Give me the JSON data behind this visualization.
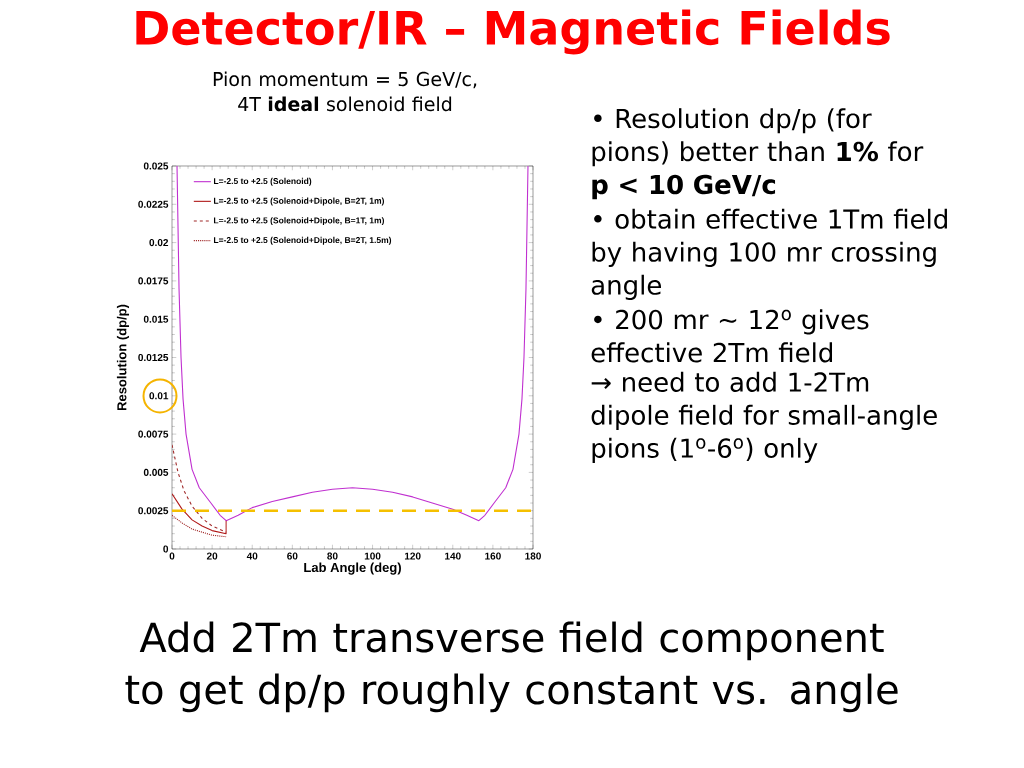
{
  "chart_data": {
    "type": "line",
    "title": "Detector/IR – Magnetic Fields",
    "subtitle": "Pion  momentum = 5 GeV/c, 4T **ideal** solenoid field",
    "xlabel": "Lab Angle (deg)",
    "ylabel": "Resolution (dp/p)",
    "xlim": [
      0,
      180
    ],
    "ylim": [
      0,
      0.025
    ],
    "xticks": [
      0,
      20,
      40,
      60,
      80,
      100,
      120,
      140,
      160,
      180
    ],
    "yticks": [
      0,
      0.0025,
      0.005,
      0.0075,
      0.01,
      0.0125,
      0.015,
      0.0175,
      0.02,
      0.0225,
      0.025
    ],
    "legend": "top left",
    "grid": false,
    "marker": "none",
    "series": [
      {
        "name": "L=-2.5 to +2.5 (Solenoid)",
        "color": "#c030d0",
        "line_style": "solid",
        "x": [
          2.5,
          3.5,
          4.5,
          5.5,
          7,
          10,
          13.6,
          19.4,
          24,
          27,
          33,
          40,
          50,
          60,
          70,
          80,
          90,
          100,
          110,
          120,
          130,
          140,
          147,
          153,
          156,
          160.6,
          166.4,
          170,
          173,
          174.5,
          175.5,
          176.5,
          177.5
        ],
        "values": [
          0.025,
          0.017,
          0.0125,
          0.0098,
          0.0075,
          0.0052,
          0.004,
          0.003,
          0.0022,
          0.00185,
          0.0022,
          0.0027,
          0.0031,
          0.0034,
          0.0037,
          0.0039,
          0.004,
          0.0039,
          0.0037,
          0.0034,
          0.003,
          0.0026,
          0.0022,
          0.00185,
          0.0022,
          0.003,
          0.004,
          0.0052,
          0.0075,
          0.0098,
          0.0125,
          0.017,
          0.025
        ]
      },
      {
        "name": "L=-2.5 to +2.5 (Solenoid+Dipole, B=2T, 1m)",
        "color": "#b01818",
        "line_style": "solid",
        "x": [
          0,
          5,
          10,
          15,
          20,
          27,
          27
        ],
        "values": [
          0.0036,
          0.0026,
          0.0019,
          0.0015,
          0.0012,
          0.001,
          0.00185
        ]
      },
      {
        "name": "L=-2.5 to +2.5 (Solenoid+Dipole, B=1T, 1m)",
        "color": "#a02828",
        "line_style": "dashed",
        "x": [
          0,
          3,
          6,
          10,
          15,
          20,
          27
        ],
        "values": [
          0.0068,
          0.005,
          0.0038,
          0.0028,
          0.002,
          0.0015,
          0.0011
        ]
      },
      {
        "name": "L=-2.5 to +2.5 (Solenoid+Dipole, B=2T, 1.5m)",
        "color": "#a02828",
        "line_style": "dotted",
        "x": [
          0,
          5,
          10,
          15,
          20,
          27
        ],
        "values": [
          0.0022,
          0.0017,
          0.0013,
          0.0011,
          0.0009,
          0.0008
        ]
      }
    ],
    "ref_lines": [
      {
        "axis": "y",
        "value": 0.0025,
        "color": "#f5c000",
        "line_style": "dashed"
      }
    ],
    "annotations": [
      "• Resolution dp/p (for pions) better than **1%** for **p < 10 GeV/c**",
      "• obtain effective 1Tm field by having 100 mr crossing angle",
      "• 200 mr ~ 12$^{o}$ gives effective 2Tm field",
      "→ need to add 1-2Tm dipole field for small-angle pions (1$^{o}$-6$^{o}$) only",
      "Add 2Tm transverse field component to get dp/p roughly constant vs. angle"
    ]
  }
}
